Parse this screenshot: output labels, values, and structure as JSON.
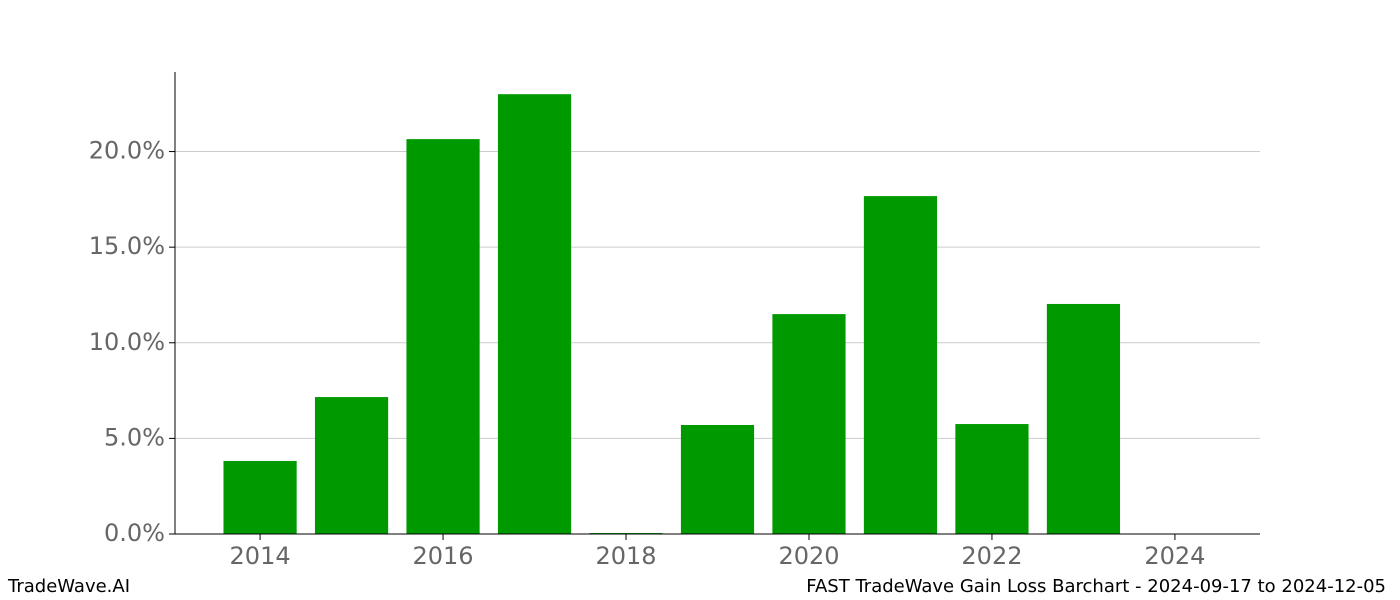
{
  "chart_data": {
    "type": "bar",
    "title": "FAST TradeWave Gain Loss Barchart - 2024-09-17 to 2024-12-05",
    "source": "TradeWave.AI",
    "x": [
      2014,
      2015,
      2016,
      2017,
      2018,
      2019,
      2020,
      2021,
      2022,
      2023
    ],
    "values": [
      3.82,
      7.16,
      20.65,
      23.0,
      0.05,
      5.7,
      11.5,
      17.67,
      5.75,
      12.03
    ],
    "color": "#009900",
    "xlim": [
      2013.07,
      2024.93
    ],
    "xticks": [
      2014,
      2016,
      2018,
      2020,
      2022,
      2024
    ],
    "ylim": [
      0,
      24.16
    ],
    "yticks": [
      {
        "value": 0,
        "label": "0.0%"
      },
      {
        "value": 5,
        "label": "5.0%"
      },
      {
        "value": 10,
        "label": "10.0%"
      },
      {
        "value": 15,
        "label": "15.0%"
      },
      {
        "value": 20,
        "label": "20.0%"
      }
    ],
    "grid": true
  }
}
